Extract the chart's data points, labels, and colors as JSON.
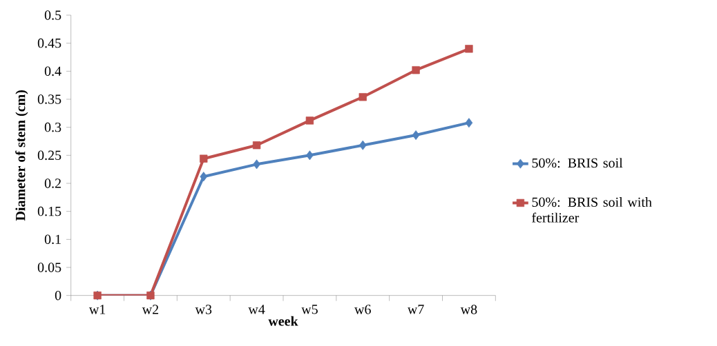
{
  "chart_data": {
    "type": "line",
    "xlabel": "week",
    "ylabel": "Diameter of stem (cm)",
    "categories": [
      "w1",
      "w2",
      "w3",
      "w4",
      "w5",
      "w6",
      "w7",
      "w8"
    ],
    "series": [
      {
        "name": "50%: BRIS soil",
        "color": "#4f81bd",
        "marker": "diamond",
        "values": [
          0,
          0,
          0.212,
          0.234,
          0.25,
          0.268,
          0.286,
          0.308
        ]
      },
      {
        "name": "50%: BRIS soil with fertilizer",
        "color": "#c0504d",
        "marker": "square",
        "values": [
          0,
          0,
          0.244,
          0.268,
          0.312,
          0.354,
          0.402,
          0.44
        ]
      }
    ],
    "ylim": [
      0,
      0.5
    ],
    "yticks": [
      0,
      0.05,
      0.1,
      0.15,
      0.2,
      0.25,
      0.3,
      0.35,
      0.4,
      0.45,
      0.5
    ],
    "legend": "right"
  }
}
